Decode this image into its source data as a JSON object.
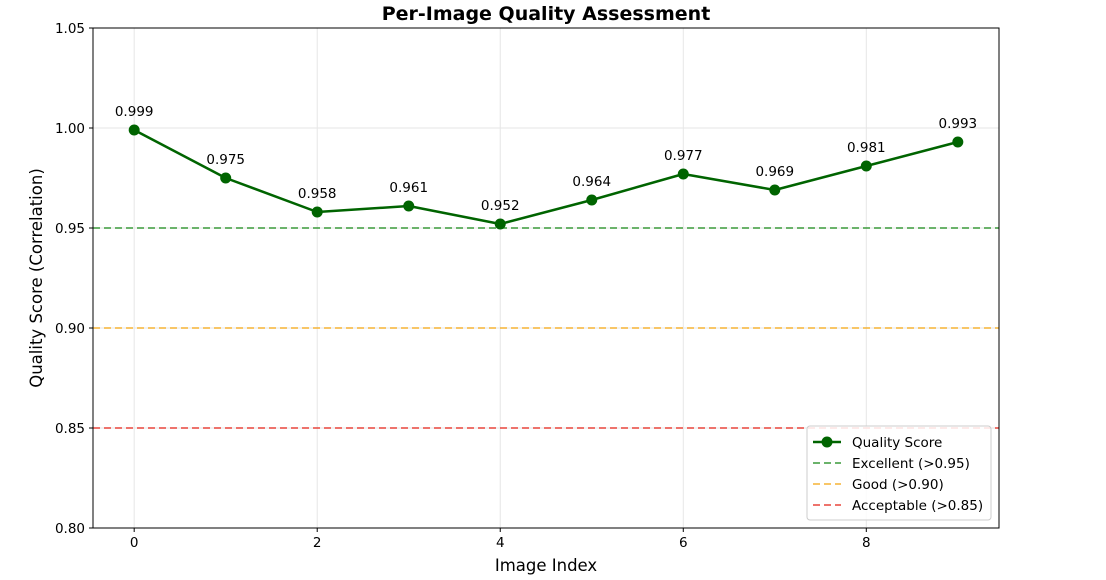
{
  "chart_data": {
    "type": "line",
    "title": "Per-Image Quality Assessment",
    "xlabel": "Image Index",
    "ylabel": "Quality Score (Correlation)",
    "x": [
      0,
      1,
      2,
      3,
      4,
      5,
      6,
      7,
      8,
      9
    ],
    "xlim": [
      -0.45,
      9.45
    ],
    "ylim": [
      0.8,
      1.05
    ],
    "xticks": [
      0,
      2,
      4,
      6,
      8
    ],
    "xtick_labels": [
      "0",
      "2",
      "4",
      "6",
      "8"
    ],
    "yticks": [
      0.8,
      0.85,
      0.9,
      0.95,
      1.0,
      1.05
    ],
    "ytick_labels": [
      "0.80",
      "0.85",
      "0.90",
      "0.95",
      "1.00",
      "1.05"
    ],
    "grid": true,
    "legend_position": "bottom-right",
    "series": [
      {
        "name": "Quality Score",
        "values": [
          0.999,
          0.975,
          0.958,
          0.961,
          0.952,
          0.964,
          0.977,
          0.969,
          0.981,
          0.993
        ],
        "data_labels": [
          "0.999",
          "0.975",
          "0.958",
          "0.961",
          "0.952",
          "0.964",
          "0.977",
          "0.969",
          "0.981",
          "0.993"
        ],
        "color": "#006400",
        "style": "solid-with-markers"
      }
    ],
    "reference_lines": [
      {
        "name": "Excellent (>0.95)",
        "y": 0.95,
        "color": "#3a9a3a",
        "style": "dashed"
      },
      {
        "name": "Good (>0.90)",
        "y": 0.9,
        "color": "#f5b335",
        "style": "dashed"
      },
      {
        "name": "Acceptable (>0.85)",
        "y": 0.85,
        "color": "#e8453c",
        "style": "dashed"
      }
    ]
  }
}
